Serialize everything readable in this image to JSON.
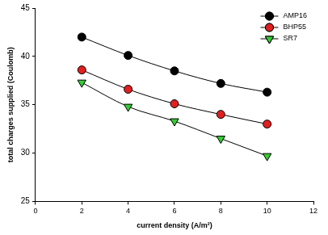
{
  "chart_data": {
    "type": "line",
    "x_label": "current density (A/m²)",
    "y_label": "total charges supplied (Coulomb)",
    "x": [
      2,
      4,
      6,
      8,
      10
    ],
    "series": [
      {
        "name": "AMP16",
        "color": "#000000",
        "marker": "circle",
        "values": [
          42.0,
          40.1,
          38.5,
          37.2,
          36.3
        ]
      },
      {
        "name": "BHP55",
        "color": "#e02020",
        "marker": "circle",
        "values": [
          38.6,
          36.6,
          35.1,
          34.0,
          33.0
        ]
      },
      {
        "name": "SR7",
        "color": "#33cc33",
        "marker": "triangle-down",
        "values": [
          37.3,
          34.8,
          33.3,
          31.5,
          29.7
        ]
      }
    ],
    "xlim": [
      0,
      12
    ],
    "xticks": [
      0,
      2,
      4,
      6,
      8,
      10,
      12
    ],
    "ylim": [
      25,
      45
    ],
    "yticks": [
      25,
      30,
      35,
      40,
      45
    ],
    "grid": false,
    "legend": "upper right"
  }
}
